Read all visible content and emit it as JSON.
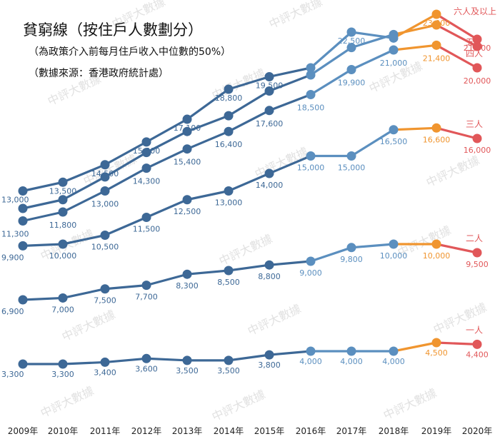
{
  "chart_data": {
    "type": "line",
    "title": "貧窮線（按住戶人數劃分）",
    "subtitle1": "（為政策介入前每月住戶收入中位數的50%）",
    "subtitle2": "（數據來源：香港政府統計處）",
    "x": [
      "2009年",
      "2010年",
      "2011年",
      "2012年",
      "2013年",
      "2014年",
      "2015年",
      "2016年",
      "2017年",
      "2018年",
      "2019年",
      "2020年"
    ],
    "series": [
      {
        "name": "一人",
        "values": [
          3300,
          3300,
          3400,
          3600,
          3500,
          3500,
          3800,
          4000,
          4000,
          4000,
          4500,
          4400
        ],
        "labels": [
          "3,300",
          "3,300",
          "3,400",
          "3,600",
          "3,500",
          "3,500",
          "3,800",
          "4,000",
          "4,000",
          "4,000",
          "4,500",
          "4,400"
        ]
      },
      {
        "name": "二人",
        "values": [
          6900,
          7000,
          7500,
          7700,
          8300,
          8500,
          8800,
          9000,
          9800,
          10000,
          10000,
          9500
        ],
        "labels": [
          "6,900",
          "7,000",
          "7,500",
          "7,700",
          "8,300",
          "8,500",
          "8,800",
          "9,000",
          "9,800",
          "10,000",
          "10,000",
          "9,500"
        ]
      },
      {
        "name": "三人",
        "values": [
          9900,
          10000,
          10500,
          11500,
          12500,
          13000,
          14000,
          15000,
          15000,
          16500,
          16600,
          16000
        ],
        "labels": [
          "9,900",
          "10,000",
          "10,500",
          "11,500",
          "12,500",
          "13,000",
          "14,000",
          "15,000",
          "15,000",
          "16,500",
          "16,600",
          "16,000"
        ]
      },
      {
        "name": "四人",
        "values": [
          11300,
          11800,
          13000,
          14300,
          15400,
          16400,
          17600,
          18500,
          19900,
          21000,
          21400,
          20000
        ],
        "labels": [
          "11,300",
          "11,800",
          "13,000",
          "14,300",
          "15,400",
          "16,400",
          "17,600",
          "18,500",
          "19,900",
          "21,000",
          "21,400",
          "20,000"
        ]
      },
      {
        "name": "五人",
        "values": [
          12000,
          12500,
          13800,
          15200,
          16400,
          17300,
          18700,
          19600,
          21200,
          22300,
          22700,
          21300
        ],
        "labels": [
          "",
          "",
          "",
          "",
          "",
          "",
          "",
          "",
          "",
          "",
          "",
          ""
        ]
      },
      {
        "name": "六人及以上",
        "values": [
          13000,
          13500,
          14500,
          15800,
          17100,
          18800,
          19500,
          20000,
          22500,
          22000,
          23000,
          21900
        ],
        "labels": [
          "13,000",
          "13,500",
          "14,500",
          "15,800",
          "17,100",
          "18,800",
          "19,500",
          "",
          "22,500",
          "",
          "23,000",
          "21,900"
        ]
      }
    ],
    "ylim": [
      1500,
      24000
    ],
    "grid": false,
    "colors": {
      "early": "#3d6896",
      "mid": "#5b8fbf",
      "y2019": "#f0952f",
      "y2020": "#e15759"
    },
    "watermark": "中評大數據"
  }
}
